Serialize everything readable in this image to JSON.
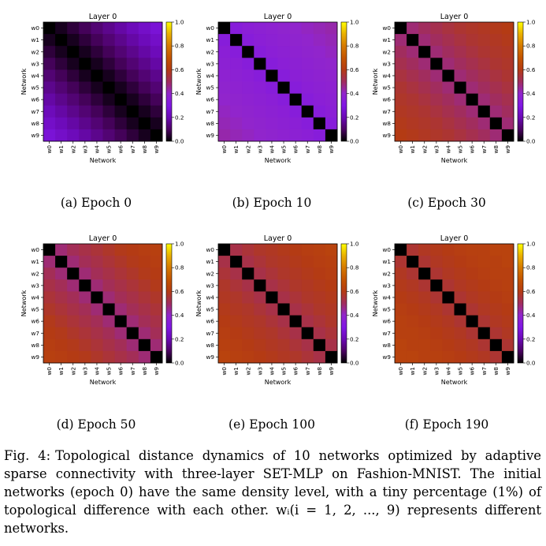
{
  "panels": [
    {
      "id": "a",
      "caption": "(a) Epoch 0"
    },
    {
      "id": "b",
      "caption": "(b) Epoch 10"
    },
    {
      "id": "c",
      "caption": "(c) Epoch 30"
    },
    {
      "id": "d",
      "caption": "(d) Epoch 50"
    },
    {
      "id": "e",
      "caption": "(e) Epoch 100"
    },
    {
      "id": "f",
      "caption": "(f) Epoch 190"
    }
  ],
  "caption": {
    "label": "Fig. 4:",
    "text": "Topological distance dynamics of 10 networks optimized by adaptive sparse connectivity with three-layer SET-MLP on Fashion-MNIST. The initial networks (epoch 0) have the same density level, with a tiny percentage (1%) of topological difference with each other. wᵢ(i = 1, 2, ..., 9) represents different networks."
  },
  "chart_data": [
    {
      "type": "heatmap",
      "title": "Layer 0",
      "xlabel": "Network",
      "ylabel": "Network",
      "labels": [
        "w0",
        "w1",
        "w2",
        "w3",
        "w4",
        "w5",
        "w6",
        "w7",
        "w8",
        "w9"
      ],
      "colormap": "gnuplot",
      "colorbar_ticks": [
        "0.0",
        "0.2",
        "0.4",
        "0.6",
        "0.8",
        "1.0"
      ],
      "vlim": [
        0,
        1
      ],
      "values": [
        [
          0.0,
          0.03,
          0.06,
          0.09,
          0.12,
          0.15,
          0.18,
          0.21,
          0.24,
          0.27
        ],
        [
          0.03,
          0.0,
          0.03,
          0.06,
          0.09,
          0.12,
          0.15,
          0.18,
          0.21,
          0.24
        ],
        [
          0.06,
          0.03,
          0.0,
          0.03,
          0.06,
          0.09,
          0.12,
          0.15,
          0.18,
          0.21
        ],
        [
          0.09,
          0.06,
          0.03,
          0.0,
          0.03,
          0.06,
          0.09,
          0.12,
          0.15,
          0.18
        ],
        [
          0.12,
          0.09,
          0.06,
          0.03,
          0.0,
          0.03,
          0.06,
          0.09,
          0.12,
          0.15
        ],
        [
          0.15,
          0.12,
          0.09,
          0.06,
          0.03,
          0.0,
          0.03,
          0.06,
          0.09,
          0.12
        ],
        [
          0.18,
          0.15,
          0.12,
          0.09,
          0.06,
          0.03,
          0.0,
          0.03,
          0.06,
          0.09
        ],
        [
          0.21,
          0.18,
          0.15,
          0.12,
          0.09,
          0.06,
          0.03,
          0.0,
          0.03,
          0.06
        ],
        [
          0.24,
          0.21,
          0.18,
          0.15,
          0.12,
          0.09,
          0.06,
          0.03,
          0.0,
          0.03
        ],
        [
          0.27,
          0.24,
          0.21,
          0.18,
          0.15,
          0.12,
          0.09,
          0.06,
          0.03,
          0.0
        ]
      ]
    },
    {
      "type": "heatmap",
      "title": "Layer 0",
      "xlabel": "Network",
      "ylabel": "Network",
      "labels": [
        "w0",
        "w1",
        "w2",
        "w3",
        "w4",
        "w5",
        "w6",
        "w7",
        "w8",
        "w9"
      ],
      "colormap": "gnuplot",
      "colorbar_ticks": [
        "0.0",
        "0.2",
        "0.4",
        "0.6",
        "0.8",
        "1.0"
      ],
      "vlim": [
        0,
        1
      ],
      "values": [
        [
          0.0,
          0.34,
          0.36,
          0.37,
          0.38,
          0.39,
          0.4,
          0.41,
          0.42,
          0.43
        ],
        [
          0.34,
          0.0,
          0.34,
          0.36,
          0.37,
          0.38,
          0.39,
          0.4,
          0.41,
          0.42
        ],
        [
          0.36,
          0.34,
          0.0,
          0.34,
          0.36,
          0.37,
          0.38,
          0.39,
          0.4,
          0.41
        ],
        [
          0.37,
          0.36,
          0.34,
          0.0,
          0.34,
          0.36,
          0.37,
          0.38,
          0.39,
          0.4
        ],
        [
          0.38,
          0.37,
          0.36,
          0.34,
          0.0,
          0.34,
          0.36,
          0.37,
          0.38,
          0.39
        ],
        [
          0.39,
          0.38,
          0.37,
          0.36,
          0.34,
          0.0,
          0.34,
          0.36,
          0.37,
          0.38
        ],
        [
          0.4,
          0.39,
          0.38,
          0.37,
          0.36,
          0.34,
          0.0,
          0.34,
          0.36,
          0.37
        ],
        [
          0.41,
          0.4,
          0.39,
          0.38,
          0.37,
          0.36,
          0.34,
          0.0,
          0.34,
          0.36
        ],
        [
          0.42,
          0.41,
          0.4,
          0.39,
          0.38,
          0.37,
          0.36,
          0.34,
          0.0,
          0.34
        ],
        [
          0.43,
          0.42,
          0.41,
          0.4,
          0.39,
          0.38,
          0.37,
          0.36,
          0.34,
          0.0
        ]
      ]
    },
    {
      "type": "heatmap",
      "title": "Layer 0",
      "xlabel": "Network",
      "ylabel": "Network",
      "labels": [
        "w0",
        "w1",
        "w2",
        "w3",
        "w4",
        "w5",
        "w6",
        "w7",
        "w8",
        "w9"
      ],
      "colormap": "gnuplot",
      "colorbar_ticks": [
        "0.0",
        "0.2",
        "0.4",
        "0.6",
        "0.8",
        "1.0"
      ],
      "vlim": [
        0,
        1
      ],
      "values": [
        [
          0.0,
          0.48,
          0.5,
          0.52,
          0.54,
          0.56,
          0.57,
          0.58,
          0.59,
          0.6
        ],
        [
          0.48,
          0.0,
          0.48,
          0.5,
          0.52,
          0.54,
          0.56,
          0.57,
          0.58,
          0.59
        ],
        [
          0.5,
          0.48,
          0.0,
          0.48,
          0.5,
          0.52,
          0.54,
          0.56,
          0.57,
          0.58
        ],
        [
          0.52,
          0.5,
          0.48,
          0.0,
          0.48,
          0.5,
          0.52,
          0.54,
          0.56,
          0.57
        ],
        [
          0.54,
          0.52,
          0.5,
          0.48,
          0.0,
          0.48,
          0.5,
          0.52,
          0.54,
          0.56
        ],
        [
          0.56,
          0.54,
          0.52,
          0.5,
          0.48,
          0.0,
          0.48,
          0.5,
          0.52,
          0.54
        ],
        [
          0.57,
          0.56,
          0.54,
          0.52,
          0.5,
          0.48,
          0.0,
          0.48,
          0.5,
          0.52
        ],
        [
          0.58,
          0.57,
          0.56,
          0.54,
          0.52,
          0.5,
          0.48,
          0.0,
          0.48,
          0.5
        ],
        [
          0.59,
          0.58,
          0.57,
          0.56,
          0.54,
          0.52,
          0.5,
          0.48,
          0.0,
          0.48
        ],
        [
          0.6,
          0.59,
          0.58,
          0.57,
          0.56,
          0.54,
          0.52,
          0.5,
          0.48,
          0.0
        ]
      ]
    },
    {
      "type": "heatmap",
      "title": "Layer 0",
      "xlabel": "Network",
      "ylabel": "Network",
      "labels": [
        "w0",
        "w1",
        "w2",
        "w3",
        "w4",
        "w5",
        "w6",
        "w7",
        "w8",
        "w9"
      ],
      "colormap": "gnuplot",
      "colorbar_ticks": [
        "0.0",
        "0.2",
        "0.4",
        "0.6",
        "0.8",
        "1.0"
      ],
      "vlim": [
        0,
        1
      ],
      "values": [
        [
          0.0,
          0.48,
          0.51,
          0.53,
          0.55,
          0.57,
          0.59,
          0.6,
          0.61,
          0.62
        ],
        [
          0.48,
          0.0,
          0.48,
          0.51,
          0.53,
          0.55,
          0.57,
          0.59,
          0.6,
          0.61
        ],
        [
          0.51,
          0.48,
          0.0,
          0.48,
          0.51,
          0.53,
          0.55,
          0.57,
          0.59,
          0.6
        ],
        [
          0.53,
          0.51,
          0.48,
          0.0,
          0.48,
          0.51,
          0.53,
          0.55,
          0.57,
          0.59
        ],
        [
          0.55,
          0.53,
          0.51,
          0.48,
          0.0,
          0.48,
          0.51,
          0.53,
          0.55,
          0.57
        ],
        [
          0.57,
          0.55,
          0.53,
          0.51,
          0.48,
          0.0,
          0.48,
          0.51,
          0.53,
          0.55
        ],
        [
          0.59,
          0.57,
          0.55,
          0.53,
          0.51,
          0.48,
          0.0,
          0.48,
          0.51,
          0.53
        ],
        [
          0.6,
          0.59,
          0.57,
          0.55,
          0.53,
          0.51,
          0.48,
          0.0,
          0.48,
          0.51
        ],
        [
          0.61,
          0.6,
          0.59,
          0.57,
          0.55,
          0.53,
          0.51,
          0.48,
          0.0,
          0.48
        ],
        [
          0.62,
          0.61,
          0.6,
          0.59,
          0.57,
          0.55,
          0.53,
          0.51,
          0.48,
          0.0
        ]
      ]
    },
    {
      "type": "heatmap",
      "title": "Layer 0",
      "xlabel": "Network",
      "ylabel": "Network",
      "labels": [
        "w0",
        "w1",
        "w2",
        "w3",
        "w4",
        "w5",
        "w6",
        "w7",
        "w8",
        "w9"
      ],
      "colormap": "gnuplot",
      "colorbar_ticks": [
        "0.0",
        "0.2",
        "0.4",
        "0.6",
        "0.8",
        "1.0"
      ],
      "vlim": [
        0,
        1
      ],
      "values": [
        [
          0.0,
          0.53,
          0.55,
          0.57,
          0.58,
          0.59,
          0.6,
          0.61,
          0.62,
          0.63
        ],
        [
          0.53,
          0.0,
          0.53,
          0.55,
          0.57,
          0.58,
          0.59,
          0.6,
          0.61,
          0.62
        ],
        [
          0.55,
          0.53,
          0.0,
          0.53,
          0.55,
          0.57,
          0.58,
          0.59,
          0.6,
          0.61
        ],
        [
          0.57,
          0.55,
          0.53,
          0.0,
          0.53,
          0.55,
          0.57,
          0.58,
          0.59,
          0.6
        ],
        [
          0.58,
          0.57,
          0.55,
          0.53,
          0.0,
          0.53,
          0.55,
          0.57,
          0.58,
          0.59
        ],
        [
          0.59,
          0.58,
          0.57,
          0.55,
          0.53,
          0.0,
          0.53,
          0.55,
          0.57,
          0.58
        ],
        [
          0.6,
          0.59,
          0.58,
          0.57,
          0.55,
          0.53,
          0.0,
          0.53,
          0.55,
          0.57
        ],
        [
          0.61,
          0.6,
          0.59,
          0.58,
          0.57,
          0.55,
          0.53,
          0.0,
          0.53,
          0.55
        ],
        [
          0.62,
          0.61,
          0.6,
          0.59,
          0.58,
          0.57,
          0.55,
          0.53,
          0.0,
          0.53
        ],
        [
          0.63,
          0.62,
          0.61,
          0.6,
          0.59,
          0.58,
          0.57,
          0.55,
          0.53,
          0.0
        ]
      ]
    },
    {
      "type": "heatmap",
      "title": "Layer 0",
      "xlabel": "Network",
      "ylabel": "Network",
      "labels": [
        "w0",
        "w1",
        "w2",
        "w3",
        "w4",
        "w5",
        "w6",
        "w7",
        "w8",
        "w9"
      ],
      "colormap": "gnuplot",
      "colorbar_ticks": [
        "0.0",
        "0.2",
        "0.4",
        "0.6",
        "0.8",
        "1.0"
      ],
      "vlim": [
        0,
        1
      ],
      "values": [
        [
          0.0,
          0.56,
          0.58,
          0.59,
          0.6,
          0.61,
          0.62,
          0.62,
          0.63,
          0.63
        ],
        [
          0.56,
          0.0,
          0.56,
          0.58,
          0.59,
          0.6,
          0.61,
          0.62,
          0.62,
          0.63
        ],
        [
          0.58,
          0.56,
          0.0,
          0.56,
          0.58,
          0.59,
          0.6,
          0.61,
          0.62,
          0.62
        ],
        [
          0.59,
          0.58,
          0.56,
          0.0,
          0.56,
          0.58,
          0.59,
          0.6,
          0.61,
          0.62
        ],
        [
          0.6,
          0.59,
          0.58,
          0.56,
          0.0,
          0.56,
          0.58,
          0.59,
          0.6,
          0.61
        ],
        [
          0.61,
          0.6,
          0.59,
          0.58,
          0.56,
          0.0,
          0.56,
          0.58,
          0.59,
          0.6
        ],
        [
          0.62,
          0.61,
          0.6,
          0.59,
          0.58,
          0.56,
          0.0,
          0.56,
          0.58,
          0.59
        ],
        [
          0.62,
          0.62,
          0.61,
          0.6,
          0.59,
          0.58,
          0.56,
          0.0,
          0.56,
          0.58
        ],
        [
          0.63,
          0.62,
          0.62,
          0.61,
          0.6,
          0.59,
          0.58,
          0.56,
          0.0,
          0.56
        ],
        [
          0.63,
          0.63,
          0.62,
          0.62,
          0.61,
          0.6,
          0.59,
          0.58,
          0.56,
          0.0
        ]
      ]
    }
  ]
}
